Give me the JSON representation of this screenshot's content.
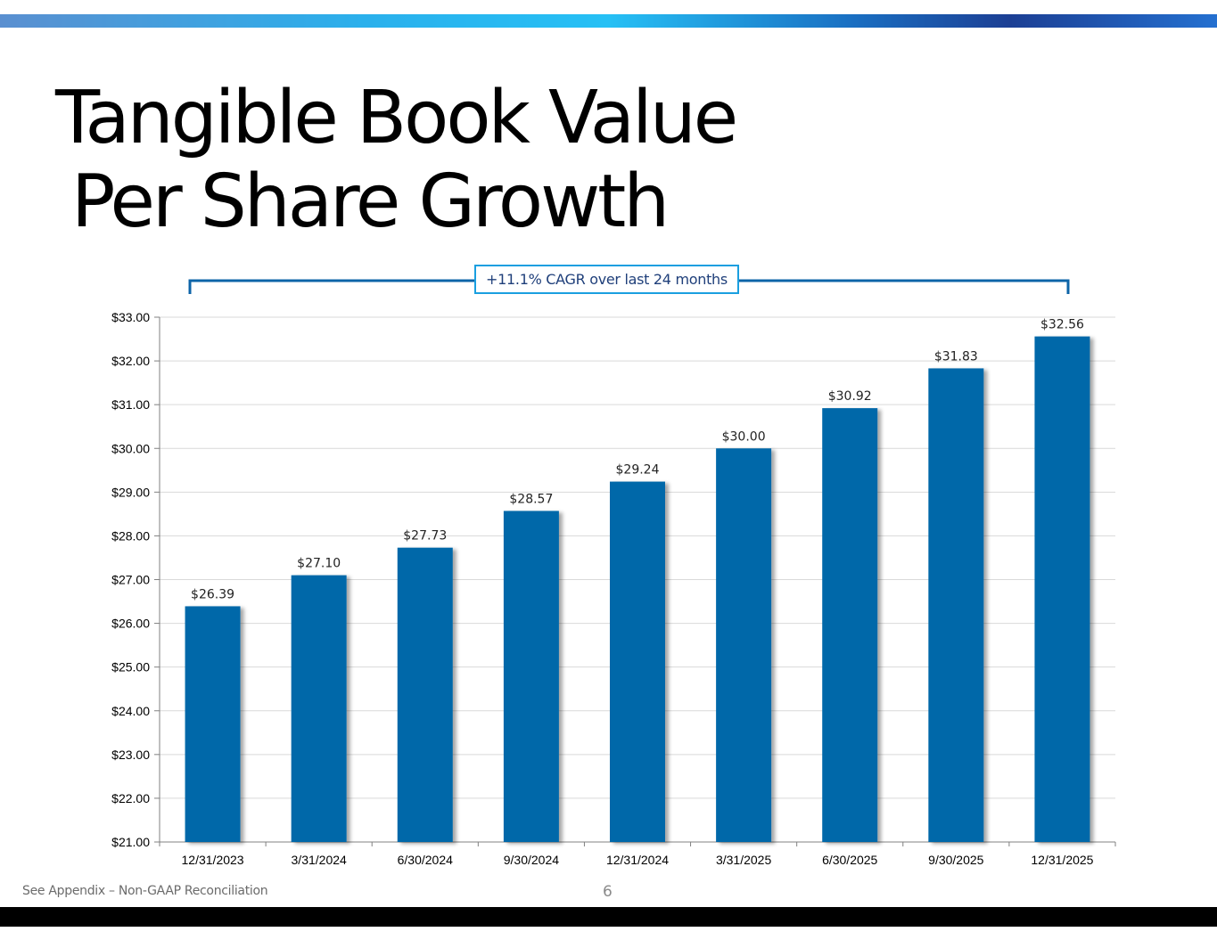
{
  "slide": {
    "title_line1": "Tangible Book Value",
    "title_line2": "Per Share Growth",
    "callout": "+11.1% CAGR over last 24 months",
    "footnote": "See Appendix – Non-GAAP Reconciliation",
    "page_number": "6"
  },
  "colors": {
    "bar": "#0068a9",
    "bracket": "#0d64a8",
    "callout_border": "#1a9fe0",
    "gridline": "#d9d9d9"
  },
  "chart_data": {
    "type": "bar",
    "categories": [
      "12/31/2023",
      "3/31/2024",
      "6/30/2024",
      "9/30/2024",
      "12/31/2024",
      "3/31/2025",
      "6/30/2025",
      "9/30/2025",
      "12/31/2025"
    ],
    "values": [
      26.39,
      27.1,
      27.73,
      28.57,
      29.24,
      30.0,
      30.92,
      31.83,
      32.56
    ],
    "data_labels": [
      "$26.39",
      "$27.10",
      "$27.73",
      "$28.57",
      "$29.24",
      "$30.00",
      "$30.92",
      "$31.83",
      "$32.56"
    ],
    "ylim": [
      21,
      33
    ],
    "yticks": [
      21,
      22,
      23,
      24,
      25,
      26,
      27,
      28,
      29,
      30,
      31,
      32,
      33
    ],
    "ytick_labels": [
      "$21.00",
      "$22.00",
      "$23.00",
      "$24.00",
      "$25.00",
      "$26.00",
      "$27.00",
      "$28.00",
      "$29.00",
      "$30.00",
      "$31.00",
      "$32.00",
      "$33.00"
    ],
    "grid": true,
    "legend": "none"
  }
}
